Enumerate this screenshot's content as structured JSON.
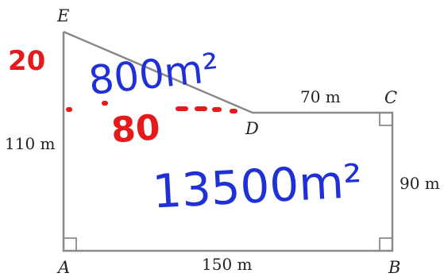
{
  "vertices": {
    "a": "A",
    "b": "B",
    "c": "C",
    "d": "D",
    "e": "E"
  },
  "measurements": {
    "ae": "110 m",
    "ab": "150 m",
    "bc": "90 m",
    "cd": "70 m"
  },
  "annotations": {
    "red_side": "20",
    "triangle_area": "800m²",
    "red_base": "80",
    "rectangle_area": "13500m²"
  },
  "colors": {
    "line": "#8a8a8a",
    "text": "#222222",
    "blue_ink": "#1f31d6",
    "red_ink": "#e51a1a"
  }
}
